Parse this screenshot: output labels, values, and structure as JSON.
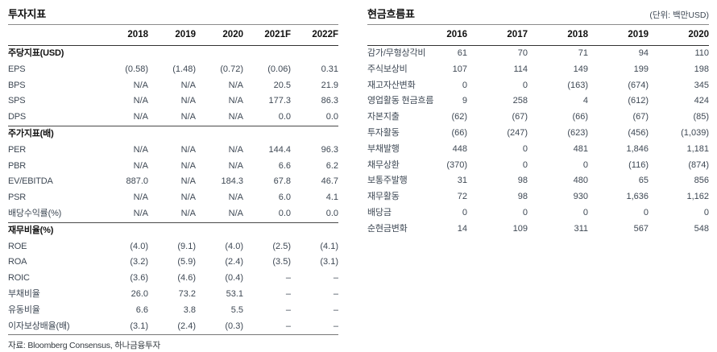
{
  "left_table": {
    "title": "투자지표",
    "columns": [
      "",
      "2018",
      "2019",
      "2020",
      "2021F",
      "2022F"
    ],
    "sections": [
      {
        "header": "주당지표(USD)",
        "rows": [
          [
            "EPS",
            "(0.58)",
            "(1.48)",
            "(0.72)",
            "(0.06)",
            "0.31"
          ],
          [
            "BPS",
            "N/A",
            "N/A",
            "N/A",
            "20.5",
            "21.9"
          ],
          [
            "SPS",
            "N/A",
            "N/A",
            "N/A",
            "177.3",
            "86.3"
          ],
          [
            "DPS",
            "N/A",
            "N/A",
            "N/A",
            "0.0",
            "0.0"
          ]
        ]
      },
      {
        "header": "주가지표(배)",
        "rows": [
          [
            "PER",
            "N/A",
            "N/A",
            "N/A",
            "144.4",
            "96.3"
          ],
          [
            "PBR",
            "N/A",
            "N/A",
            "N/A",
            "6.6",
            "6.2"
          ],
          [
            "EV/EBITDA",
            "887.0",
            "N/A",
            "184.3",
            "67.8",
            "46.7"
          ],
          [
            "PSR",
            "N/A",
            "N/A",
            "N/A",
            "6.0",
            "4.1"
          ],
          [
            "배당수익률(%)",
            "N/A",
            "N/A",
            "N/A",
            "0.0",
            "0.0"
          ]
        ]
      },
      {
        "header": "재무비율(%)",
        "rows": [
          [
            "ROE",
            "(4.0)",
            "(9.1)",
            "(4.0)",
            "(2.5)",
            "(4.1)"
          ],
          [
            "ROA",
            "(3.2)",
            "(5.9)",
            "(2.4)",
            "(3.5)",
            "(3.1)"
          ],
          [
            "ROIC",
            "(3.6)",
            "(4.6)",
            "(0.4)",
            "–",
            "–"
          ],
          [
            "부채비율",
            "26.0",
            "73.2",
            "53.1",
            "–",
            "–"
          ],
          [
            "유동비율",
            "6.6",
            "3.8",
            "5.5",
            "–",
            "–"
          ],
          [
            "이자보상배율(배)",
            "(3.1)",
            "(2.4)",
            "(0.3)",
            "–",
            "–"
          ]
        ]
      }
    ],
    "footnote": "자료: Bloomberg Consensus, 하나금융투자"
  },
  "right_table": {
    "title": "현금흐름표",
    "unit": "(단위: 백만USD)",
    "columns": [
      "",
      "2016",
      "2017",
      "2018",
      "2019",
      "2020"
    ],
    "rows": [
      [
        "감가/무형상각비",
        "61",
        "70",
        "71",
        "94",
        "110"
      ],
      [
        "주식보상비",
        "107",
        "114",
        "149",
        "199",
        "198"
      ],
      [
        "재고자산변화",
        "0",
        "0",
        "(163)",
        "(674)",
        "345"
      ],
      [
        "영업활동 현금흐름",
        "9",
        "258",
        "4",
        "(612)",
        "424"
      ],
      [
        "자본지출",
        "(62)",
        "(67)",
        "(66)",
        "(67)",
        "(85)"
      ],
      [
        "투자활동",
        "(66)",
        "(247)",
        "(623)",
        "(456)",
        "(1,039)"
      ],
      [
        "부채발행",
        "448",
        "0",
        "481",
        "1,846",
        "1,181"
      ],
      [
        "채무상환",
        "(370)",
        "0",
        "0",
        "(116)",
        "(874)"
      ],
      [
        "보통주발행",
        "31",
        "98",
        "480",
        "65",
        "856"
      ],
      [
        "재무활동",
        "72",
        "98",
        "930",
        "1,636",
        "1,162"
      ],
      [
        "배당금",
        "0",
        "0",
        "0",
        "0",
        "0"
      ],
      [
        "순현금변화",
        "14",
        "109",
        "311",
        "567",
        "548"
      ]
    ]
  },
  "colors": {
    "heading_text": "#111111",
    "body_text": "#3e4854",
    "rule_dark": "#333333",
    "rule_gray": "#8b8b8b"
  }
}
